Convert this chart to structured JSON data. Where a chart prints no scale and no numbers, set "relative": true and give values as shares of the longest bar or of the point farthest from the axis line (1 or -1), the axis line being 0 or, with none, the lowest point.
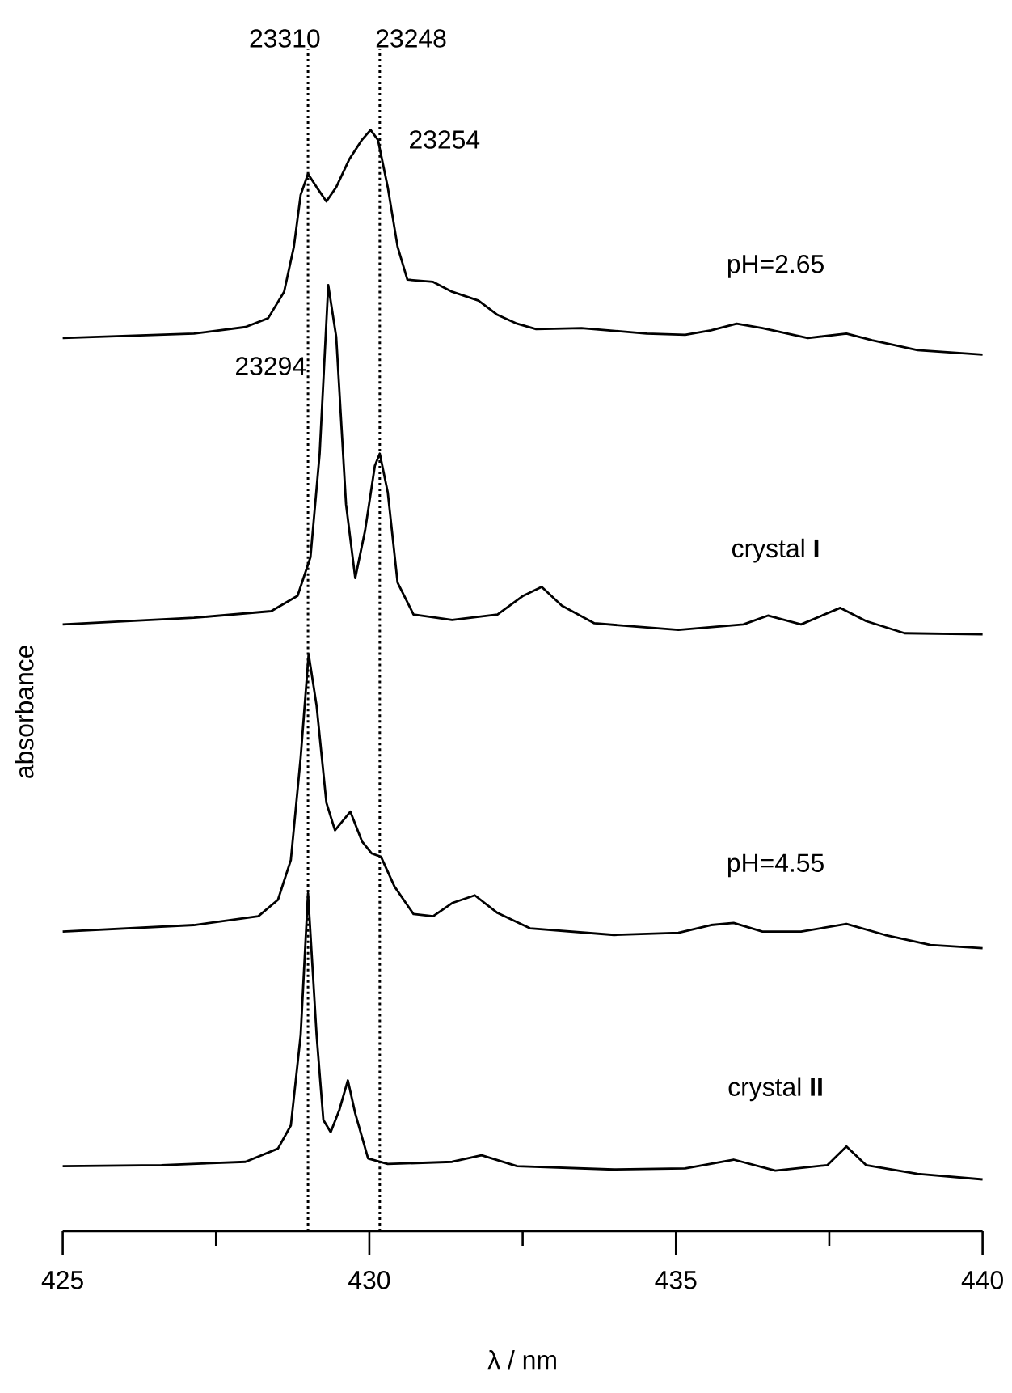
{
  "chart_data": {
    "type": "line",
    "relative": true,
    "xlabel": "λ / nm",
    "ylabel": "absorbance",
    "tick_labels": "x",
    "line_style": "solid",
    "xlim": [
      425,
      440
    ],
    "xticks": [
      425,
      {
        "value": 427.5,
        "label": null
      },
      430,
      {
        "value": 432.5,
        "label": null
      },
      435,
      {
        "value": 437.5,
        "label": null
      },
      440
    ],
    "series": [
      {
        "name": "pH=2.65",
        "color": "#000000",
        "x": [
          425.0,
          427.14,
          427.98,
          428.35,
          428.61,
          428.77,
          428.88,
          429.0,
          429.14,
          429.3,
          429.46,
          429.67,
          429.88,
          430.02,
          430.14,
          430.3,
          430.46,
          430.62,
          431.04,
          431.35,
          431.78,
          432.09,
          432.41,
          432.72,
          433.46,
          434.52,
          435.15,
          435.57,
          435.99,
          436.41,
          437.15,
          437.78,
          438.2,
          438.94,
          440.0
        ],
        "values": [
          0.811,
          0.815,
          0.821,
          0.829,
          0.853,
          0.894,
          0.941,
          0.96,
          0.948,
          0.935,
          0.948,
          0.973,
          0.991,
          1.0,
          0.991,
          0.948,
          0.894,
          0.864,
          0.862,
          0.853,
          0.845,
          0.832,
          0.824,
          0.819,
          0.82,
          0.815,
          0.814,
          0.818,
          0.824,
          0.82,
          0.811,
          0.815,
          0.809,
          0.8,
          0.796
        ]
      },
      {
        "name": "crystal **I**",
        "color": "#000000",
        "x": [
          425.0,
          427.14,
          428.4,
          428.83,
          429.04,
          429.19,
          429.33,
          429.46,
          429.62,
          429.77,
          429.93,
          430.09,
          430.17,
          430.3,
          430.46,
          430.72,
          431.35,
          432.09,
          432.51,
          432.81,
          433.14,
          433.67,
          435.04,
          436.1,
          436.5,
          437.04,
          437.68,
          438.1,
          438.73,
          440.0
        ],
        "values": [
          0.551,
          0.557,
          0.563,
          0.577,
          0.612,
          0.706,
          0.859,
          0.812,
          0.66,
          0.593,
          0.636,
          0.695,
          0.706,
          0.671,
          0.589,
          0.56,
          0.555,
          0.56,
          0.577,
          0.585,
          0.568,
          0.552,
          0.546,
          0.551,
          0.559,
          0.551,
          0.566,
          0.554,
          0.543,
          0.542
        ]
      },
      {
        "name": "pH=4.55",
        "color": "#000000",
        "x": [
          425.0,
          427.14,
          428.19,
          428.51,
          428.72,
          428.88,
          429.01,
          429.14,
          429.3,
          429.44,
          429.69,
          429.88,
          430.04,
          430.19,
          430.41,
          430.72,
          431.04,
          431.35,
          431.72,
          432.09,
          432.62,
          433.99,
          435.04,
          435.57,
          435.94,
          436.41,
          437.04,
          437.78,
          438.41,
          439.15,
          440.0
        ],
        "values": [
          0.272,
          0.278,
          0.286,
          0.301,
          0.337,
          0.43,
          0.524,
          0.477,
          0.389,
          0.364,
          0.381,
          0.354,
          0.343,
          0.34,
          0.313,
          0.288,
          0.286,
          0.298,
          0.305,
          0.289,
          0.275,
          0.269,
          0.271,
          0.278,
          0.28,
          0.272,
          0.272,
          0.279,
          0.269,
          0.26,
          0.257
        ]
      },
      {
        "name": "crystal **II**",
        "color": "#000000",
        "x": [
          425.0,
          426.61,
          427.98,
          428.51,
          428.72,
          428.88,
          429.0,
          429.14,
          429.25,
          429.37,
          429.51,
          429.65,
          429.77,
          429.98,
          430.3,
          431.35,
          431.83,
          432.41,
          433.99,
          435.15,
          435.94,
          436.62,
          437.47,
          437.78,
          438.1,
          438.94,
          440.0
        ],
        "values": [
          0.059,
          0.06,
          0.063,
          0.075,
          0.096,
          0.178,
          0.307,
          0.178,
          0.101,
          0.09,
          0.11,
          0.137,
          0.107,
          0.066,
          0.061,
          0.063,
          0.069,
          0.059,
          0.056,
          0.057,
          0.065,
          0.055,
          0.06,
          0.077,
          0.06,
          0.052,
          0.047
        ]
      }
    ],
    "ref_lines": [
      {
        "axis": "x",
        "value": 429.0,
        "color": "#000000",
        "line_style": "dotted"
      },
      {
        "axis": "x",
        "value": 430.17,
        "color": "#000000",
        "line_style": "dotted"
      }
    ],
    "annotations": [
      {
        "text": "23310",
        "x": 429.0,
        "y": 1.073
      },
      {
        "text": "23248",
        "x": 430.17,
        "y": 1.073
      },
      {
        "text": "23254",
        "x": 430.02,
        "y": 1.0
      },
      {
        "text": "23294",
        "x": 429.33,
        "y": 0.859
      }
    ]
  }
}
